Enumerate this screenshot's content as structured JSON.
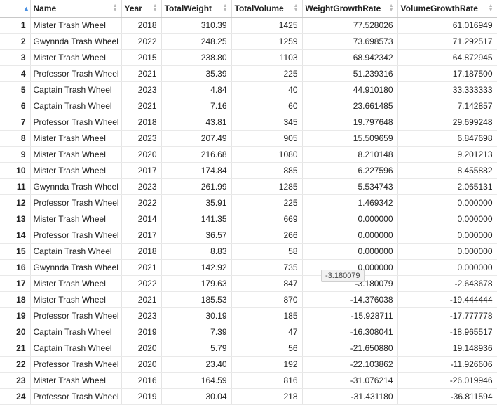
{
  "columns": [
    "",
    "Name",
    "Year",
    "TotalWeight",
    "TotalVolume",
    "WeightGrowthRate",
    "VolumeGrowthRate"
  ],
  "rows": [
    [
      "1",
      "Mister Trash Wheel",
      "2018",
      "310.39",
      "1425",
      "77.528026",
      "61.016949"
    ],
    [
      "2",
      "Gwynnda Trash Wheel",
      "2022",
      "248.25",
      "1259",
      "73.698573",
      "71.292517"
    ],
    [
      "3",
      "Mister Trash Wheel",
      "2015",
      "238.80",
      "1103",
      "68.942342",
      "64.872945"
    ],
    [
      "4",
      "Professor Trash Wheel",
      "2021",
      "35.39",
      "225",
      "51.239316",
      "17.187500"
    ],
    [
      "5",
      "Captain Trash Wheel",
      "2023",
      "4.84",
      "40",
      "44.910180",
      "33.333333"
    ],
    [
      "6",
      "Captain Trash Wheel",
      "2021",
      "7.16",
      "60",
      "23.661485",
      "7.142857"
    ],
    [
      "7",
      "Professor Trash Wheel",
      "2018",
      "43.81",
      "345",
      "19.797648",
      "29.699248"
    ],
    [
      "8",
      "Mister Trash Wheel",
      "2023",
      "207.49",
      "905",
      "15.509659",
      "6.847698"
    ],
    [
      "9",
      "Mister Trash Wheel",
      "2020",
      "216.68",
      "1080",
      "8.210148",
      "9.201213"
    ],
    [
      "10",
      "Mister Trash Wheel",
      "2017",
      "174.84",
      "885",
      "6.227596",
      "8.455882"
    ],
    [
      "11",
      "Gwynnda Trash Wheel",
      "2023",
      "261.99",
      "1285",
      "5.534743",
      "2.065131"
    ],
    [
      "12",
      "Professor Trash Wheel",
      "2022",
      "35.91",
      "225",
      "1.469342",
      "0.000000"
    ],
    [
      "13",
      "Mister Trash Wheel",
      "2014",
      "141.35",
      "669",
      "0.000000",
      "0.000000"
    ],
    [
      "14",
      "Professor Trash Wheel",
      "2017",
      "36.57",
      "266",
      "0.000000",
      "0.000000"
    ],
    [
      "15",
      "Captain Trash Wheel",
      "2018",
      "8.83",
      "58",
      "0.000000",
      "0.000000"
    ],
    [
      "16",
      "Gwynnda Trash Wheel",
      "2021",
      "142.92",
      "735",
      "0.000000",
      "0.000000"
    ],
    [
      "17",
      "Mister Trash Wheel",
      "2022",
      "179.63",
      "847",
      "-3.180079",
      "-2.643678"
    ],
    [
      "18",
      "Mister Trash Wheel",
      "2021",
      "185.53",
      "870",
      "-14.376038",
      "-19.444444"
    ],
    [
      "19",
      "Professor Trash Wheel",
      "2023",
      "30.19",
      "185",
      "-15.928711",
      "-17.777778"
    ],
    [
      "20",
      "Captain Trash Wheel",
      "2019",
      "7.39",
      "47",
      "-16.308041",
      "-18.965517"
    ],
    [
      "21",
      "Captain Trash Wheel",
      "2020",
      "5.79",
      "56",
      "-21.650880",
      "19.148936"
    ],
    [
      "22",
      "Professor Trash Wheel",
      "2020",
      "23.40",
      "192",
      "-22.103862",
      "-11.926606"
    ],
    [
      "23",
      "Mister Trash Wheel",
      "2016",
      "164.59",
      "816",
      "-31.076214",
      "-26.019946"
    ],
    [
      "24",
      "Professor Trash Wheel",
      "2019",
      "30.04",
      "218",
      "-31.431180",
      "-36.811594"
    ]
  ],
  "tooltip": "-3.180079",
  "sort_icon": "sort-arrows-icon",
  "active_sort_color": "#4a90e2"
}
